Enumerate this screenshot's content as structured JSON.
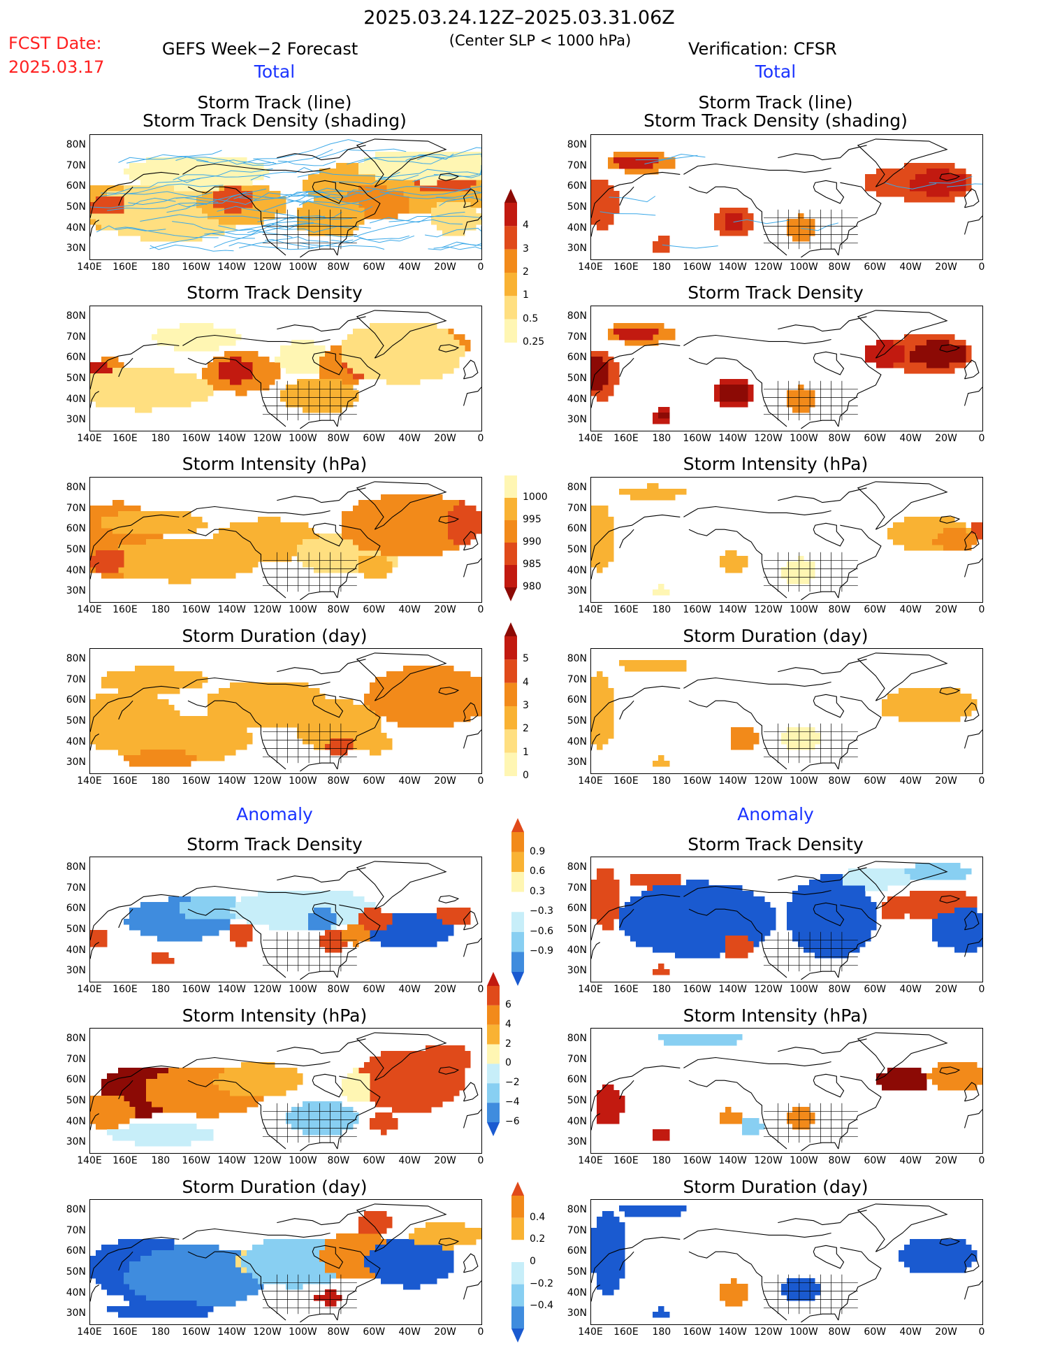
{
  "header": {
    "period": "2025.03.24.12Z–2025.03.31.06Z",
    "fcst_label": "FCST Date:",
    "fcst_date": "2025.03.17",
    "left_title": "GEFS Week−2 Forecast",
    "criterion": "(Center SLP < 1000 hPa)",
    "right_title": "Verification: CFSR"
  },
  "sections": {
    "total": "Total",
    "anomaly": "Anomaly"
  },
  "panel_titles": {
    "track_line": "Storm Track (line)",
    "track_density_shading": "Storm Track Density (shading)",
    "track_density": "Storm Track Density",
    "intensity": "Storm Intensity (hPa)",
    "duration": "Storm Duration (day)"
  },
  "axes": {
    "lat": [
      "80N",
      "70N",
      "60N",
      "50N",
      "40N",
      "30N"
    ],
    "lon": [
      "140E",
      "160E",
      "180",
      "160W",
      "140W",
      "120W",
      "100W",
      "80W",
      "60W",
      "40W",
      "20W",
      "0"
    ]
  },
  "colorbars": {
    "density_total": [
      "4",
      "3",
      "2",
      "1",
      "0.5",
      "0.25"
    ],
    "intensity_total": [
      "1000",
      "995",
      "990",
      "985",
      "980"
    ],
    "duration_total": [
      "5",
      "4",
      "3",
      "2",
      "1",
      "0"
    ],
    "density_anom": [
      "0.9",
      "0.6",
      "0.3",
      "−0.3",
      "−0.6",
      "−0.9"
    ],
    "intensity_anom": [
      "6",
      "4",
      "2",
      "0",
      "−2",
      "−4",
      "−6"
    ],
    "duration_anom": [
      "0.4",
      "0.2",
      "0",
      "−0.2",
      "−0.4"
    ]
  },
  "colors": {
    "warm": [
      "#fff6b3",
      "#ffdf80",
      "#f9b233",
      "#f28a1a",
      "#e04a1a",
      "#c21a10",
      "#8c0a05"
    ],
    "cool": [
      "#c7eef9",
      "#88cff2",
      "#3f8cde",
      "#1a5ad0"
    ],
    "track_line": "#3aa8e8"
  }
}
